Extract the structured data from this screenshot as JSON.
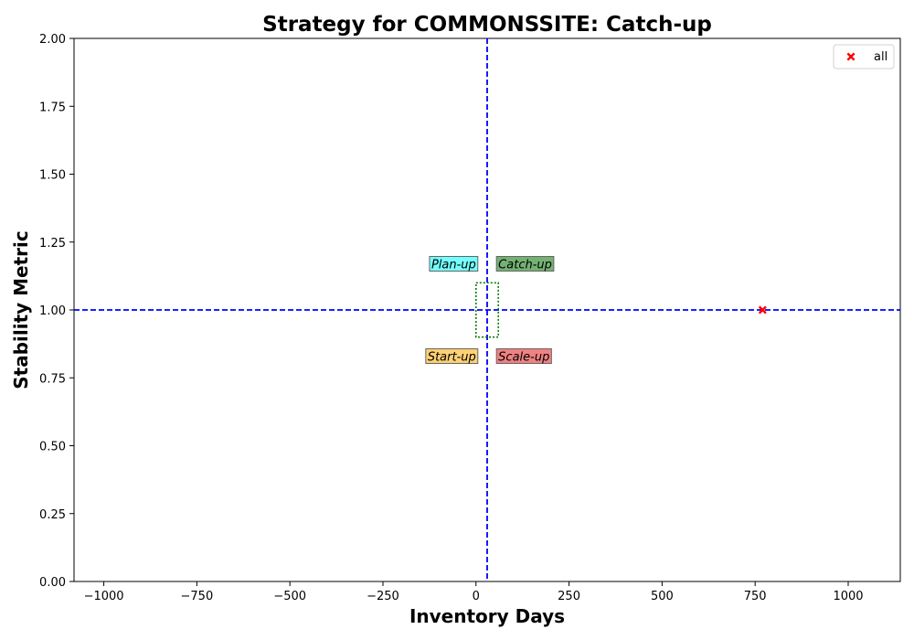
{
  "chart_data": {
    "type": "scatter",
    "title": "Strategy for COMMONSSITE: Catch-up",
    "xlabel": "Inventory Days",
    "ylabel": "Stability Metric",
    "xlim": [
      -1080,
      1140
    ],
    "ylim": [
      0,
      2
    ],
    "x_ticks": [
      -1000,
      -750,
      -500,
      -250,
      0,
      250,
      500,
      750,
      1000
    ],
    "x_tick_labels": [
      "−1000",
      "−750",
      "−500",
      "−250",
      "0",
      "250",
      "500",
      "750",
      "1000"
    ],
    "y_ticks": [
      0,
      0.25,
      0.5,
      0.75,
      1.0,
      1.25,
      1.5,
      1.75,
      2.0
    ],
    "y_tick_labels": [
      "0.00",
      "0.25",
      "0.50",
      "0.75",
      "1.00",
      "1.25",
      "1.50",
      "1.75",
      "2.00"
    ],
    "grid": false,
    "legend_position": "top-right",
    "series": [
      {
        "name": "all",
        "marker": "X",
        "color": "#ff0000",
        "points": [
          {
            "x": 770,
            "y": 1.0
          }
        ]
      }
    ],
    "reference_lines": {
      "vertical_x": 30,
      "horizontal_y": 1.0,
      "color": "#0000ff",
      "style": "dashed"
    },
    "threshold_box": {
      "x_range": [
        0,
        60
      ],
      "y_range": [
        0.9,
        1.1
      ],
      "color": "#008000",
      "style": "dotted"
    },
    "quadrant_labels": [
      {
        "text": "Plan-up",
        "anchor_x": 0,
        "anchor_y": 1.17,
        "align": "right",
        "bg": "#66ffff"
      },
      {
        "text": "Catch-up",
        "anchor_x": 55,
        "anchor_y": 1.17,
        "align": "left",
        "bg": "#66aa66"
      },
      {
        "text": "Start-up",
        "anchor_x": 0,
        "anchor_y": 0.83,
        "align": "right",
        "bg": "#ffcc66"
      },
      {
        "text": "Scale-up",
        "anchor_x": 55,
        "anchor_y": 0.83,
        "align": "left",
        "bg": "#f07575"
      }
    ]
  }
}
